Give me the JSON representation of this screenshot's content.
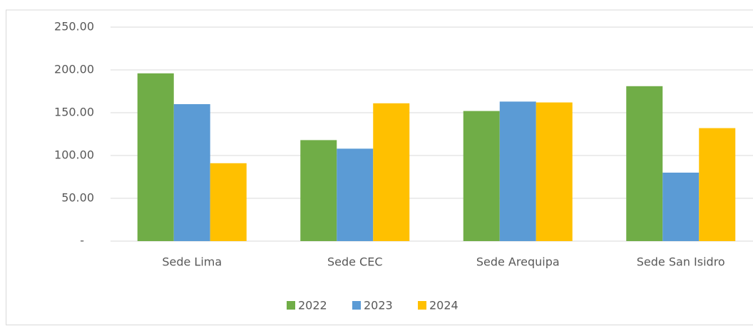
{
  "chart_data": {
    "type": "bar",
    "categories": [
      "Sede Lima",
      "Sede CEC",
      "Sede Arequipa",
      "Sede San Isidro"
    ],
    "series": [
      {
        "name": "2022",
        "color": "#70ad47",
        "values": [
          196,
          118,
          152,
          181
        ]
      },
      {
        "name": "2023",
        "color": "#5b9bd5",
        "values": [
          160,
          108,
          163,
          80
        ]
      },
      {
        "name": "2024",
        "color": "#ffc000",
        "values": [
          91,
          161,
          162,
          132
        ]
      }
    ],
    "ylim": [
      0,
      250
    ],
    "yticks": [
      {
        "value": 0,
        "label": "-"
      },
      {
        "value": 50,
        "label": "50.00"
      },
      {
        "value": 100,
        "label": "100.00"
      },
      {
        "value": 150,
        "label": "150.00"
      },
      {
        "value": 200,
        "label": "200.00"
      },
      {
        "value": 250,
        "label": "250.00"
      }
    ],
    "grid": true,
    "legend": "bottom"
  }
}
